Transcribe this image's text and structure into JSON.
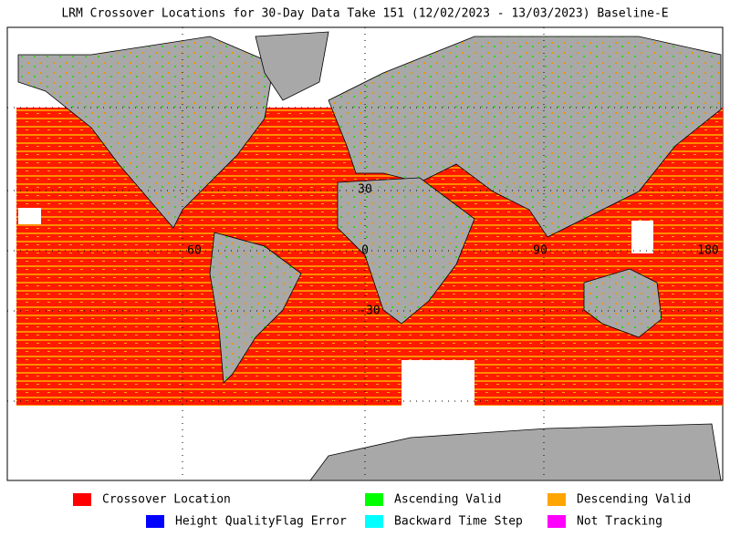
{
  "title": "LRM Crossover Locations for 30-Day Data Take 151 (12/02/2023 - 13/03/2023) Baseline-E",
  "map": {
    "labels": [
      {
        "text": "30"
      },
      {
        "text": "0"
      },
      {
        "text": "-30"
      },
      {
        "text": "60"
      },
      {
        "text": "90"
      },
      {
        "text": "180"
      }
    ]
  },
  "legend": {
    "items": [
      {
        "label": "Crossover Location",
        "color": "#ff0000"
      },
      {
        "label": "Ascending Valid",
        "color": "#00ff00"
      },
      {
        "label": "Descending Valid",
        "color": "#ffa500"
      },
      {
        "label": "Height QualityFlag Error",
        "color": "#0000ff"
      },
      {
        "label": "Backward Time Step",
        "color": "#00ffff"
      },
      {
        "label": "Not Tracking",
        "color": "#ff00ff"
      }
    ]
  }
}
